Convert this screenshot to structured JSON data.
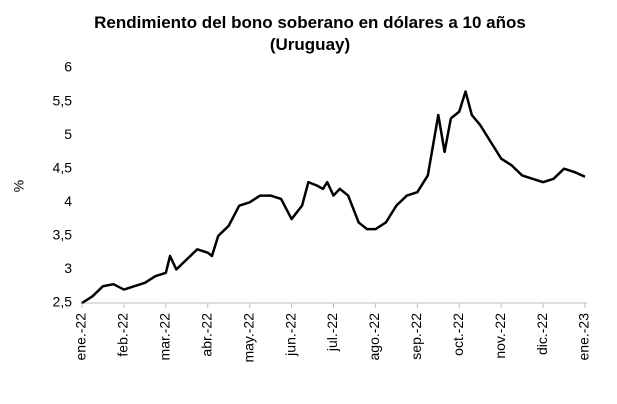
{
  "chart_data": {
    "type": "line",
    "title": "Rendimiento del bono soberano en dólares a 10 años (Uruguay)",
    "y_label": "%",
    "color": "#000000",
    "x": [
      0,
      0.25,
      0.5,
      0.75,
      1,
      1.25,
      1.5,
      1.75,
      2,
      2.1,
      2.25,
      2.5,
      2.75,
      3,
      3.1,
      3.25,
      3.5,
      3.75,
      4,
      4.25,
      4.5,
      4.75,
      5,
      5.25,
      5.4,
      5.6,
      5.75,
      5.85,
      6,
      6.15,
      6.35,
      6.6,
      6.8,
      7,
      7.25,
      7.5,
      7.75,
      8,
      8.25,
      8.5,
      8.65,
      8.8,
      9,
      9.15,
      9.3,
      9.5,
      9.75,
      10,
      10.25,
      10.5,
      10.75,
      11,
      11.25,
      11.5,
      11.75,
      12
    ],
    "values": [
      2.5,
      2.6,
      2.75,
      2.78,
      2.7,
      2.75,
      2.8,
      2.9,
      2.95,
      3.2,
      3.0,
      3.15,
      3.3,
      3.25,
      3.2,
      3.5,
      3.65,
      3.95,
      4.0,
      4.1,
      4.1,
      4.05,
      3.75,
      3.95,
      4.3,
      4.25,
      4.2,
      4.3,
      4.1,
      4.2,
      4.1,
      3.7,
      3.6,
      3.6,
      3.7,
      3.95,
      4.1,
      4.15,
      4.4,
      5.3,
      4.75,
      5.25,
      5.35,
      5.65,
      5.3,
      5.15,
      4.9,
      4.65,
      4.55,
      4.4,
      4.35,
      4.3,
      4.35,
      4.5,
      4.45,
      4.38
    ],
    "xlim": [
      0,
      12
    ],
    "xticks": [
      {
        "value": 0,
        "label": "ene.-22"
      },
      {
        "value": 1,
        "label": "feb.-22"
      },
      {
        "value": 2,
        "label": "mar.-22"
      },
      {
        "value": 3,
        "label": "abr.-22"
      },
      {
        "value": 4,
        "label": "may.-22"
      },
      {
        "value": 5,
        "label": "jun.-22"
      },
      {
        "value": 6,
        "label": "jul.-22"
      },
      {
        "value": 7,
        "label": "ago.-22"
      },
      {
        "value": 8,
        "label": "sep.-22"
      },
      {
        "value": 9,
        "label": "oct.-22"
      },
      {
        "value": 10,
        "label": "nov.-22"
      },
      {
        "value": 11,
        "label": "dic.-22"
      },
      {
        "value": 12,
        "label": "ene.-23"
      }
    ],
    "ylim": [
      2.5,
      6
    ],
    "yticks": [
      {
        "value": 2.5,
        "label": "2,5"
      },
      3,
      {
        "value": 3.5,
        "label": "3,5"
      },
      4,
      {
        "value": 4.5,
        "label": "4,5"
      },
      5,
      {
        "value": 5.5,
        "label": "5,5"
      },
      6
    ],
    "grid": false
  }
}
